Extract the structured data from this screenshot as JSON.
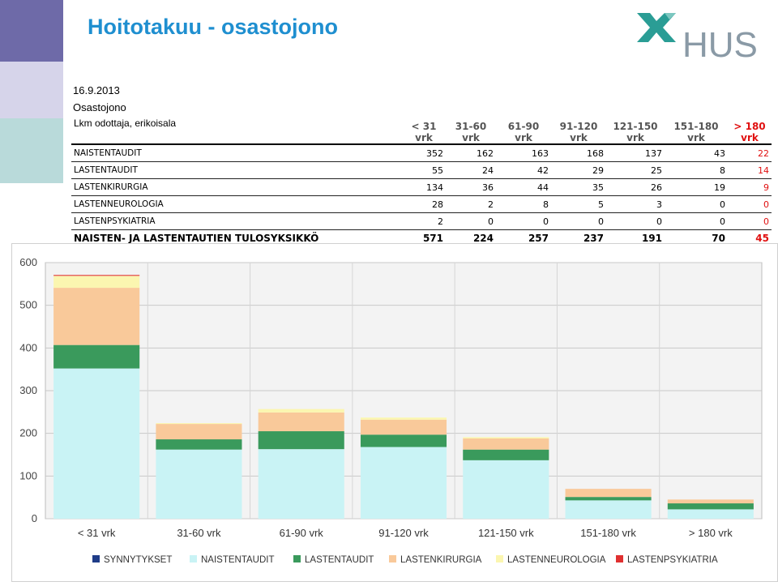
{
  "header": {
    "title": "Hoitotakuu - osastojono",
    "logo_text": "HUS"
  },
  "meta": {
    "date": "16.9.2013",
    "subtitle": "Osastojono",
    "caption": "Lkm odottaja, erikoisala"
  },
  "table": {
    "columns": [
      "< 31 vrk",
      "31-60 vrk",
      "61-90 vrk",
      "91-120 vrk",
      "121-150 vrk",
      "151-180 vrk",
      "> 180 vrk"
    ],
    "columns_line1": [
      "< 31",
      "31-60",
      "61-90",
      "91-120",
      "121-150",
      "151-180",
      "> 180"
    ],
    "columns_line2": [
      "vrk",
      "vrk",
      "vrk",
      "vrk",
      "vrk",
      "vrk",
      "vrk"
    ],
    "rows": [
      {
        "label": "NAISTENTAUDIT",
        "values": [
          "352",
          "162",
          "163",
          "168",
          "137",
          "43",
          "22"
        ]
      },
      {
        "label": "LASTENTAUDIT",
        "values": [
          "55",
          "24",
          "42",
          "29",
          "25",
          "8",
          "14"
        ]
      },
      {
        "label": "LASTENKIRURGIA",
        "values": [
          "134",
          "36",
          "44",
          "35",
          "26",
          "19",
          "9"
        ]
      },
      {
        "label": "LASTENNEUROLOGIA",
        "values": [
          "28",
          "2",
          "8",
          "5",
          "3",
          "0",
          "0"
        ]
      },
      {
        "label": "LASTENPSYKIATRIA",
        "values": [
          "2",
          "0",
          "0",
          "0",
          "0",
          "0",
          "0"
        ]
      }
    ],
    "total": {
      "label": "NAISTEN- JA LASTENTAUTIEN TULOSYKSIKKÖ",
      "values": [
        "571",
        "224",
        "257",
        "237",
        "191",
        "70",
        "45"
      ]
    }
  },
  "colors": {
    "title": "#1f8fd0",
    "accent_red": "#e01010",
    "SYNNYTYKSET": "#1f3c88",
    "NAISTENTAUDIT": "#c9f3f5",
    "LASTENTAUDIT": "#3a9a5c",
    "LASTENKIRURGIA": "#f9c99a",
    "LASTENNEUROLOGIA": "#fbf6b0",
    "LASTENPSYKIATRIA": "#e03030"
  },
  "chart_data": {
    "type": "bar",
    "stacked": true,
    "categories": [
      "< 31 vrk",
      "31-60 vrk",
      "61-90 vrk",
      "91-120 vrk",
      "121-150 vrk",
      "151-180 vrk",
      "> 180 vrk"
    ],
    "series": [
      {
        "name": "SYNNYTYKSET",
        "values": [
          0,
          0,
          0,
          0,
          0,
          0,
          0
        ]
      },
      {
        "name": "NAISTENTAUDIT",
        "values": [
          352,
          162,
          163,
          168,
          137,
          43,
          22
        ]
      },
      {
        "name": "LASTENTAUDIT",
        "values": [
          55,
          24,
          42,
          29,
          25,
          8,
          14
        ]
      },
      {
        "name": "LASTENKIRURGIA",
        "values": [
          134,
          36,
          44,
          35,
          26,
          19,
          9
        ]
      },
      {
        "name": "LASTENNEUROLOGIA",
        "values": [
          28,
          2,
          8,
          5,
          3,
          0,
          0
        ]
      },
      {
        "name": "LASTENPSYKIATRIA",
        "values": [
          2,
          0,
          0,
          0,
          0,
          0,
          0
        ]
      }
    ],
    "yticks": [
      "0",
      "100",
      "200",
      "300",
      "400",
      "500",
      "600"
    ],
    "ylim": [
      0,
      600
    ],
    "grid": true,
    "legend_position": "bottom"
  }
}
